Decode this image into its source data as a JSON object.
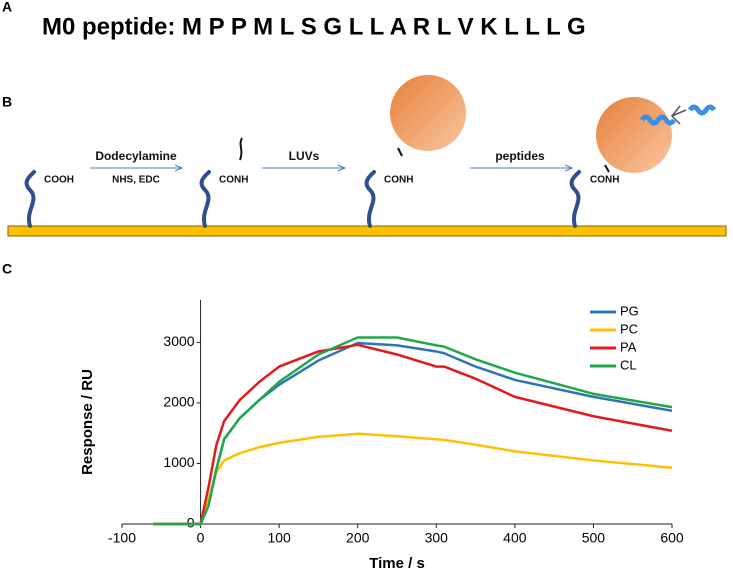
{
  "panel_a": {
    "label": "A",
    "text": "M0 peptide: M P P M L S G L L A R L V K L L L G"
  },
  "panel_b": {
    "label": "B",
    "group_1": "COOH",
    "step_1": "Dodecylamine",
    "step_1_sub": "NHS, EDC",
    "group_2": "CONH",
    "step_2": "LUVs",
    "group_3": "CONH",
    "step_3": "peptides",
    "group_4": "CONH"
  },
  "panel_c": {
    "label": "C"
  },
  "chart_data": {
    "type": "line",
    "x_label": "Time / s",
    "y_label": "Response / RU",
    "x": [
      -60,
      0,
      10,
      20,
      30,
      50,
      75,
      100,
      150,
      200,
      250,
      300,
      310,
      350,
      400,
      500,
      600
    ],
    "series": [
      {
        "name": "PG",
        "color": "#2e75b6",
        "values": [
          0,
          0,
          300,
          900,
          1400,
          1750,
          2050,
          2300,
          2700,
          2990,
          2950,
          2850,
          2820,
          2600,
          2380,
          2100,
          1870
        ]
      },
      {
        "name": "PC",
        "color": "#ffc000",
        "values": [
          0,
          0,
          400,
          850,
          1050,
          1170,
          1270,
          1340,
          1440,
          1490,
          1450,
          1400,
          1390,
          1310,
          1200,
          1050,
          930
        ]
      },
      {
        "name": "PA",
        "color": "#e31a1c",
        "values": [
          0,
          0,
          600,
          1300,
          1700,
          2050,
          2350,
          2600,
          2850,
          2960,
          2800,
          2600,
          2600,
          2400,
          2100,
          1780,
          1540
        ]
      },
      {
        "name": "CL",
        "color": "#22a84a",
        "values": [
          0,
          0,
          300,
          900,
          1400,
          1750,
          2050,
          2350,
          2800,
          3080,
          3080,
          2950,
          2930,
          2720,
          2500,
          2150,
          1930
        ]
      }
    ],
    "xlim": [
      -100,
      600
    ],
    "xticks": [
      -100,
      0,
      100,
      200,
      300,
      400,
      500,
      600
    ],
    "ylim": [
      0,
      3700
    ],
    "yticks": [
      0,
      1000,
      2000,
      3000
    ],
    "legend": "upper right"
  }
}
